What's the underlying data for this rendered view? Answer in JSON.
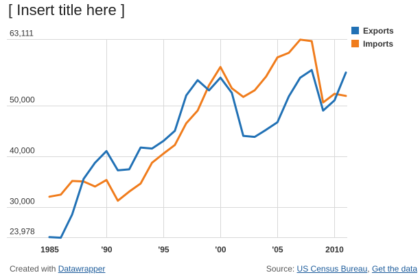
{
  "title": "[ Insert title here ]",
  "chart_data": {
    "type": "line",
    "x": [
      1985,
      1986,
      1987,
      1988,
      1989,
      1990,
      1991,
      1992,
      1993,
      1994,
      1995,
      1996,
      1997,
      1998,
      1999,
      2000,
      2001,
      2002,
      2003,
      2004,
      2005,
      2006,
      2007,
      2008,
      2009,
      2010,
      2011
    ],
    "series": [
      {
        "name": "Exports",
        "color": "#2171b5",
        "values": [
          24000,
          23900,
          28500,
          35500,
          38700,
          41000,
          37200,
          37400,
          41700,
          41500,
          43000,
          45000,
          52000,
          55000,
          53000,
          55500,
          52500,
          44000,
          43800,
          45200,
          46700,
          51800,
          55500,
          57000,
          49000,
          51000,
          56500
        ]
      },
      {
        "name": "Imports",
        "color": "#f07c1c",
        "values": [
          32000,
          32400,
          35100,
          35000,
          34000,
          35300,
          31200,
          33000,
          34600,
          38700,
          40500,
          42200,
          46500,
          49000,
          54000,
          57600,
          53400,
          51700,
          53000,
          55700,
          59500,
          60400,
          63000,
          62700,
          50600,
          52300,
          51900
        ]
      }
    ],
    "y_ticks": [
      {
        "value": 63111,
        "label": "63,111"
      },
      {
        "value": 50000,
        "label": "50,000"
      },
      {
        "value": 40000,
        "label": "40,000"
      },
      {
        "value": 30000,
        "label": "30,000"
      },
      {
        "value": 23978,
        "label": "23,978"
      }
    ],
    "x_ticks": [
      {
        "value": 1985,
        "label": "1985"
      },
      {
        "value": 1990,
        "label": "'90"
      },
      {
        "value": 1995,
        "label": "'95"
      },
      {
        "value": 2000,
        "label": "'00"
      },
      {
        "value": 2005,
        "label": "'05"
      },
      {
        "value": 2010,
        "label": "2010"
      }
    ],
    "ylim": [
      23978,
      63111
    ],
    "xlim": [
      1985,
      2011
    ],
    "grid": true,
    "legend_position": "top-right"
  },
  "legend": {
    "exports_label": "Exports",
    "imports_label": "Imports"
  },
  "footer": {
    "created_prefix": "Created with ",
    "created_link": "Datawrapper",
    "source_prefix": "Source: ",
    "source_link": "US Census Bureau",
    "separator": ", ",
    "data_link": "Get the data"
  }
}
